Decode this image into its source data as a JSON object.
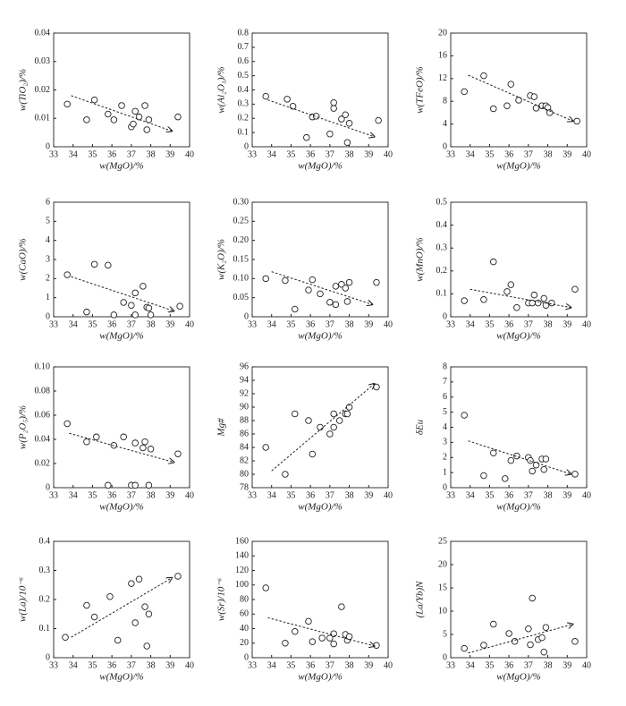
{
  "chart_data": [
    {
      "type": "scatter",
      "ylabel": "w(TiO₂)/%",
      "xlabel": "w(MgO)/%",
      "xlim": [
        33,
        40
      ],
      "xticks": [
        33,
        34,
        35,
        36,
        37,
        38,
        39,
        40
      ],
      "ylim": [
        0,
        0.04
      ],
      "yticks": [
        0,
        0.01,
        0.02,
        0.03,
        0.04
      ],
      "x": [
        33.7,
        34.7,
        35.1,
        35.8,
        36.1,
        36.5,
        37.0,
        37.1,
        37.2,
        37.4,
        37.7,
        37.8,
        37.9,
        39.4
      ],
      "values": [
        0.015,
        0.0095,
        0.0165,
        0.0115,
        0.0095,
        0.0145,
        0.007,
        0.008,
        0.0125,
        0.0105,
        0.0145,
        0.006,
        0.0095,
        0.0105
      ],
      "trend": {
        "from": [
          33.9,
          0.018
        ],
        "to": [
          39.1,
          0.0055
        ]
      }
    },
    {
      "type": "scatter",
      "ylabel": "w(Al₂O₃)/%",
      "xlabel": "w(MgO)/%",
      "xlim": [
        33,
        40
      ],
      "xticks": [
        33,
        34,
        35,
        36,
        37,
        38,
        39,
        40
      ],
      "ylim": [
        0,
        0.8
      ],
      "yticks": [
        0,
        0.1,
        0.2,
        0.3,
        0.4,
        0.5,
        0.6,
        0.7,
        0.8
      ],
      "x": [
        33.7,
        34.8,
        35.1,
        35.8,
        36.1,
        36.3,
        37.0,
        37.2,
        37.2,
        37.6,
        37.8,
        37.9,
        38.0,
        39.5
      ],
      "values": [
        0.355,
        0.335,
        0.285,
        0.065,
        0.21,
        0.215,
        0.09,
        0.27,
        0.31,
        0.195,
        0.225,
        0.03,
        0.165,
        0.185
      ],
      "trend": {
        "from": [
          33.8,
          0.33
        ],
        "to": [
          39.3,
          0.07
        ]
      }
    },
    {
      "type": "scatter",
      "ylabel": "w(TFeO)/%",
      "xlabel": "w(MgO)/%",
      "xlim": [
        33,
        40
      ],
      "xticks": [
        33,
        34,
        35,
        36,
        37,
        38,
        39,
        40
      ],
      "ylim": [
        0,
        20
      ],
      "yticks": [
        0,
        4,
        8,
        12,
        16,
        20
      ],
      "x": [
        33.7,
        34.7,
        35.2,
        35.9,
        36.1,
        36.5,
        37.1,
        37.3,
        37.4,
        37.7,
        37.9,
        38.0,
        38.1,
        39.5
      ],
      "values": [
        9.7,
        12.5,
        6.7,
        7.2,
        11,
        8.2,
        9,
        8.8,
        6.8,
        7.2,
        7.2,
        6.9,
        6,
        4.5
      ],
      "trend": {
        "from": [
          33.9,
          12.6
        ],
        "to": [
          39.3,
          4.5
        ]
      }
    },
    {
      "type": "scatter",
      "ylabel": "w(CaO)/%",
      "xlabel": "w(MgO)/%",
      "xlim": [
        33,
        40
      ],
      "xticks": [
        33,
        34,
        35,
        36,
        37,
        38,
        39,
        40
      ],
      "ylim": [
        0,
        6
      ],
      "yticks": [
        0,
        1,
        2,
        3,
        4,
        5,
        6
      ],
      "x": [
        33.7,
        34.7,
        35.1,
        35.8,
        36.1,
        36.6,
        37.0,
        37.2,
        37.2,
        37.6,
        37.8,
        37.9,
        38.0,
        39.5
      ],
      "values": [
        2.2,
        0.25,
        2.75,
        2.7,
        0.1,
        0.75,
        0.6,
        0.1,
        1.25,
        1.6,
        0.5,
        0.45,
        0.1,
        0.55
      ],
      "trend": {
        "from": [
          33.9,
          2.1
        ],
        "to": [
          39.2,
          0.3
        ]
      }
    },
    {
      "type": "scatter",
      "ylabel": "w(K₂O)/%",
      "xlabel": "w(MgO)/%",
      "xlim": [
        33,
        40
      ],
      "xticks": [
        33,
        34,
        35,
        36,
        37,
        38,
        39,
        40
      ],
      "ylim": [
        0,
        0.3
      ],
      "yticks": [
        0,
        0.05,
        {
          "value": 0.1,
          "label": "0.10"
        },
        0.15,
        {
          "value": 0.2,
          "label": "0.20"
        },
        0.25,
        {
          "value": 0.3,
          "label": "0.30"
        }
      ],
      "x": [
        33.7,
        34.7,
        35.2,
        35.9,
        36.1,
        36.5,
        37.0,
        37.3,
        37.3,
        37.6,
        37.8,
        37.9,
        38.0,
        39.4
      ],
      "values": [
        0.1,
        0.095,
        0.02,
        0.07,
        0.097,
        0.06,
        0.038,
        0.032,
        0.08,
        0.085,
        0.075,
        0.04,
        0.09,
        0.09
      ],
      "trend": {
        "from": [
          34,
          0.118
        ],
        "to": [
          39.2,
          0.032
        ]
      }
    },
    {
      "type": "scatter",
      "ylabel": "w(MnO)/%",
      "xlabel": "w(MgO)/%",
      "xlim": [
        33,
        40
      ],
      "xticks": [
        33,
        34,
        35,
        36,
        37,
        38,
        39,
        40
      ],
      "ylim": [
        0,
        0.5
      ],
      "yticks": [
        0,
        0.1,
        0.2,
        0.3,
        0.4,
        0.5
      ],
      "x": [
        33.7,
        34.7,
        35.2,
        35.9,
        36.1,
        36.4,
        37.0,
        37.2,
        37.3,
        37.5,
        37.8,
        37.9,
        38.2,
        39.4
      ],
      "values": [
        0.07,
        0.075,
        0.24,
        0.11,
        0.14,
        0.04,
        0.06,
        0.06,
        0.095,
        0.06,
        0.08,
        0.05,
        0.06,
        0.12
      ],
      "trend": {
        "from": [
          34,
          0.12
        ],
        "to": [
          39.2,
          0.04
        ]
      }
    },
    {
      "type": "scatter",
      "ylabel": "w(P₂O₅)/%",
      "xlabel": "w(MgO)/%",
      "xlim": [
        33,
        40
      ],
      "xticks": [
        33,
        34,
        35,
        36,
        37,
        38,
        39,
        40
      ],
      "ylim": [
        0,
        0.1
      ],
      "yticks": [
        0,
        0.02,
        0.04,
        0.06,
        0.08,
        {
          "value": 0.1,
          "label": "0.10"
        }
      ],
      "x": [
        33.7,
        34.7,
        35.2,
        35.8,
        36.1,
        36.6,
        37.0,
        37.2,
        37.2,
        37.6,
        37.7,
        37.9,
        38.0,
        39.4
      ],
      "values": [
        0.053,
        0.038,
        0.042,
        0.002,
        0.035,
        0.042,
        0.002,
        0.037,
        0.002,
        0.033,
        0.038,
        0.002,
        0.032,
        0.028
      ],
      "trend": {
        "from": [
          33.8,
          0.045
        ],
        "to": [
          39.2,
          0.021
        ]
      }
    },
    {
      "type": "scatter",
      "ylabel": "Mg#",
      "xlabel": "w(MgO)/%",
      "xlim": [
        33,
        40
      ],
      "xticks": [
        33,
        34,
        35,
        36,
        37,
        38,
        39,
        40
      ],
      "ylim": [
        78,
        96
      ],
      "yticks": [
        78,
        80,
        82,
        84,
        86,
        88,
        90,
        92,
        94,
        96
      ],
      "x": [
        33.7,
        34.7,
        35.2,
        35.9,
        36.1,
        36.5,
        37.0,
        37.2,
        37.2,
        37.5,
        37.8,
        37.9,
        38.0,
        39.4
      ],
      "values": [
        84,
        80,
        89,
        88,
        83,
        87,
        86,
        89,
        87,
        88,
        89,
        89,
        90,
        93
      ],
      "trend": {
        "from": [
          34,
          80.5
        ],
        "to": [
          39.3,
          93.5
        ]
      }
    },
    {
      "type": "scatter",
      "ylabel": "δEu",
      "xlabel": "w(MgO)/%",
      "xlim": [
        33,
        40
      ],
      "xticks": [
        33,
        34,
        35,
        36,
        37,
        38,
        39,
        40
      ],
      "ylim": [
        0,
        8
      ],
      "yticks": [
        0,
        1,
        2,
        3,
        4,
        5,
        6,
        7,
        8
      ],
      "x": [
        33.7,
        34.7,
        35.2,
        35.8,
        36.1,
        36.4,
        37.0,
        37.1,
        37.2,
        37.4,
        37.7,
        37.8,
        37.9,
        39.4
      ],
      "values": [
        4.8,
        0.8,
        2.3,
        0.6,
        1.8,
        2.1,
        2,
        1.8,
        1.1,
        1.5,
        1.9,
        1.2,
        1.9,
        0.9
      ],
      "trend": {
        "from": [
          33.9,
          3.1
        ],
        "to": [
          39.2,
          0.9
        ]
      }
    },
    {
      "type": "scatter",
      "ylabel": "w(La)/10⁻⁶",
      "xlabel": "w(MgO)/%",
      "xlim": [
        33,
        40
      ],
      "xticks": [
        33,
        34,
        35,
        36,
        37,
        38,
        39,
        40
      ],
      "ylim": [
        0,
        0.4
      ],
      "yticks": [
        0,
        0.1,
        0.2,
        0.3,
        0.4
      ],
      "x": [
        33.6,
        34.7,
        35.1,
        35.9,
        36.3,
        37.0,
        37.2,
        37.4,
        37.7,
        37.8,
        37.9,
        39.4
      ],
      "values": [
        0.07,
        0.18,
        0.14,
        0.21,
        0.06,
        0.255,
        0.12,
        0.27,
        0.175,
        0.04,
        0.15,
        0.28
      ],
      "trend": {
        "from": [
          33.9,
          0.07
        ],
        "to": [
          39.1,
          0.275
        ]
      }
    },
    {
      "type": "scatter",
      "ylabel": "w(Sr)/10⁻⁶",
      "xlabel": "w(MgO)/%",
      "xlim": [
        33,
        40
      ],
      "xticks": [
        33,
        34,
        35,
        36,
        37,
        38,
        39,
        40
      ],
      "ylim": [
        0,
        160
      ],
      "yticks": [
        0,
        20,
        40,
        60,
        80,
        100,
        120,
        140,
        160
      ],
      "x": [
        33.7,
        34.7,
        35.2,
        35.9,
        36.1,
        36.6,
        37.0,
        37.2,
        37.2,
        37.6,
        37.8,
        37.9,
        38.0,
        39.4
      ],
      "values": [
        96,
        20,
        36,
        50,
        22,
        27,
        27,
        19,
        33,
        70,
        32,
        24,
        29,
        17
      ],
      "trend": {
        "from": [
          33.8,
          55
        ],
        "to": [
          39.3,
          16
        ]
      }
    },
    {
      "type": "scatter",
      "ylabel": "(La/Yb)N",
      "xlabel": "w(MgO)/%",
      "xlim": [
        33,
        40
      ],
      "xticks": [
        33,
        34,
        35,
        36,
        37,
        38,
        39,
        40
      ],
      "ylim": [
        0,
        25
      ],
      "yticks": [
        0,
        5,
        10,
        15,
        20,
        25
      ],
      "x": [
        33.7,
        34.7,
        35.2,
        36.0,
        36.3,
        37.0,
        37.1,
        37.2,
        37.5,
        37.7,
        37.8,
        37.9,
        39.4
      ],
      "values": [
        2,
        2.7,
        7.2,
        5.2,
        3.5,
        6.2,
        2.8,
        12.8,
        3.9,
        4.3,
        1.2,
        6.5,
        3.5
      ],
      "trend": {
        "from": [
          33.9,
          1
        ],
        "to": [
          39.3,
          7.2
        ]
      }
    }
  ]
}
